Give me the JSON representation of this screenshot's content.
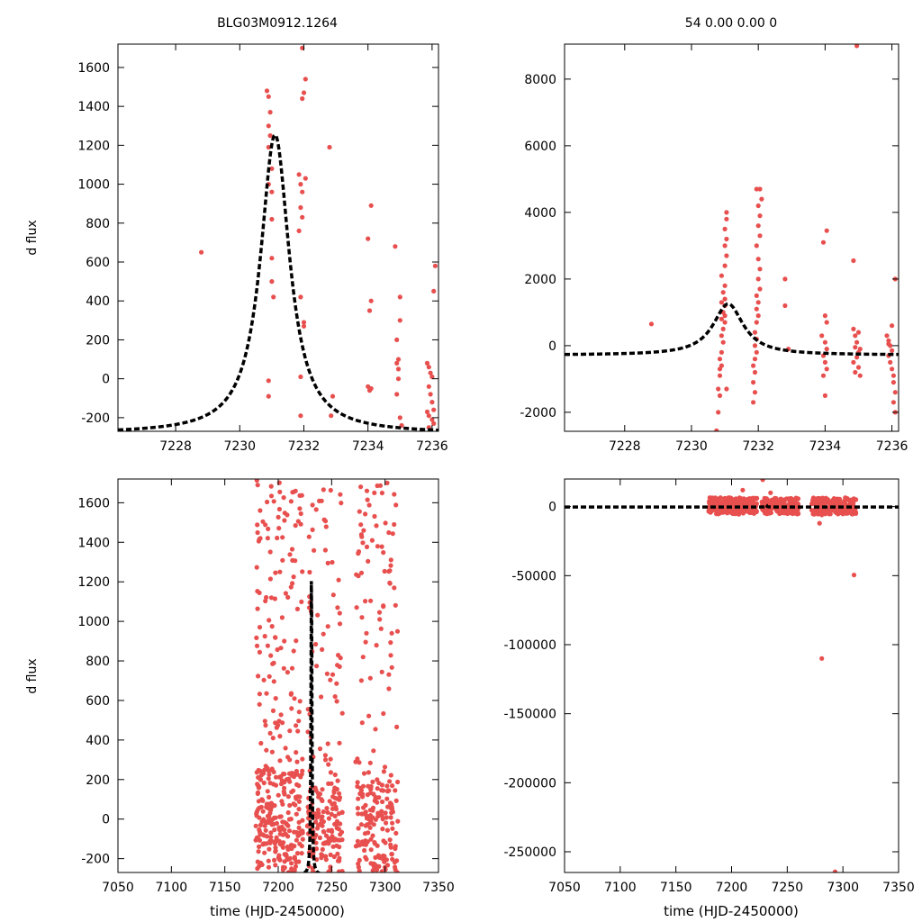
{
  "colors": {
    "points": "#e8504f",
    "model": "#000000",
    "axes": "#000000"
  },
  "chart_data": [
    {
      "id": "top-left",
      "type": "scatter",
      "title": "BLG03M0912.1264",
      "ylabel": "d flux",
      "xlabel": "",
      "xlim": [
        7226.2,
        7236.2
      ],
      "ylim": [
        -270,
        1720
      ],
      "xticks": [
        7228,
        7230,
        7232,
        7234,
        7236
      ],
      "xtick_labels": [
        "7228",
        "7230",
        "7232",
        "7234",
        "7236"
      ],
      "yticks": [
        -200,
        0,
        200,
        400,
        600,
        800,
        1000,
        1200,
        1400,
        1600
      ],
      "ytick_labels": [
        "-200",
        "0",
        "200",
        "400",
        "600",
        "800",
        "1000",
        "1200",
        "1400",
        "1600"
      ],
      "model": {
        "t0": 7231.1,
        "amplitude": 1535,
        "tau": 0.55,
        "baseline": -282
      },
      "points": [
        [
          7228.8,
          650
        ],
        [
          7230.85,
          1480
        ],
        [
          7230.9,
          1450
        ],
        [
          7230.95,
          1370
        ],
        [
          7230.9,
          1300
        ],
        [
          7230.95,
          1250
        ],
        [
          7230.9,
          1190
        ],
        [
          7231.0,
          1080
        ],
        [
          7230.9,
          1000
        ],
        [
          7231.0,
          960
        ],
        [
          7231.0,
          820
        ],
        [
          7231.0,
          620
        ],
        [
          7231.0,
          500
        ],
        [
          7231.05,
          420
        ],
        [
          7230.9,
          -10
        ],
        [
          7230.9,
          -90
        ],
        [
          7231.85,
          1050
        ],
        [
          7231.9,
          1000
        ],
        [
          7231.95,
          960
        ],
        [
          7231.9,
          880
        ],
        [
          7231.95,
          830
        ],
        [
          7231.85,
          760
        ],
        [
          7231.9,
          420
        ],
        [
          7232.0,
          290
        ],
        [
          7232.0,
          270
        ],
        [
          7231.9,
          10
        ],
        [
          7231.9,
          -190
        ],
        [
          7231.95,
          1700
        ],
        [
          7231.95,
          1440
        ],
        [
          7232.0,
          1470
        ],
        [
          7232.05,
          1540
        ],
        [
          7232.05,
          1030
        ],
        [
          7232.8,
          1190
        ],
        [
          7232.9,
          -90
        ],
        [
          7232.85,
          -190
        ],
        [
          7234.0,
          720
        ],
        [
          7234.1,
          890
        ],
        [
          7234.1,
          400
        ],
        [
          7234.05,
          350
        ],
        [
          7234.0,
          -40
        ],
        [
          7234.05,
          -60
        ],
        [
          7234.1,
          -50
        ],
        [
          7234.85,
          680
        ],
        [
          7234.9,
          200
        ],
        [
          7234.95,
          100
        ],
        [
          7234.9,
          80
        ],
        [
          7234.95,
          50
        ],
        [
          7235.0,
          420
        ],
        [
          7235.0,
          300
        ],
        [
          7234.95,
          0
        ],
        [
          7234.9,
          -80
        ],
        [
          7235.0,
          -200
        ],
        [
          7235.05,
          -240
        ],
        [
          7235.85,
          80
        ],
        [
          7235.9,
          60
        ],
        [
          7235.95,
          30
        ],
        [
          7236.0,
          10
        ],
        [
          7235.9,
          -40
        ],
        [
          7235.95,
          -80
        ],
        [
          7236.0,
          -120
        ],
        [
          7235.85,
          -170
        ],
        [
          7235.9,
          -190
        ],
        [
          7236.0,
          -210
        ],
        [
          7236.05,
          -160
        ],
        [
          7236.05,
          -230
        ],
        [
          7235.9,
          -250
        ],
        [
          7236.05,
          450
        ],
        [
          7236.1,
          580
        ]
      ]
    },
    {
      "id": "top-right",
      "type": "scatter",
      "title": "54  0.00  0.00  0",
      "ylabel": "",
      "xlabel": "",
      "xlim": [
        7226.2,
        7236.2
      ],
      "ylim": [
        -2570,
        9050
      ],
      "xticks": [
        7228,
        7230,
        7232,
        7234,
        7236
      ],
      "xtick_labels": [
        "7228",
        "7230",
        "7232",
        "7234",
        "7236"
      ],
      "yticks": [
        -2000,
        0,
        2000,
        4000,
        6000,
        8000
      ],
      "ytick_labels": [
        "-2000",
        "0",
        "2000",
        "4000",
        "6000",
        "8000"
      ],
      "model": {
        "t0": 7231.1,
        "amplitude": 1535,
        "tau": 0.55,
        "baseline": -282
      },
      "points": [
        [
          7228.8,
          650
        ],
        [
          7230.75,
          -2550
        ],
        [
          7230.8,
          -2000
        ],
        [
          7230.85,
          -1500
        ],
        [
          7230.8,
          -1300
        ],
        [
          7230.85,
          -700
        ],
        [
          7230.9,
          -600
        ],
        [
          7230.85,
          -400
        ],
        [
          7230.9,
          -200
        ],
        [
          7230.95,
          100
        ],
        [
          7230.9,
          300
        ],
        [
          7230.95,
          500
        ],
        [
          7231.0,
          700
        ],
        [
          7230.9,
          800
        ],
        [
          7231.0,
          900
        ],
        [
          7230.95,
          1000
        ],
        [
          7231.0,
          1200
        ],
        [
          7230.9,
          1300
        ],
        [
          7231.0,
          1400
        ],
        [
          7230.95,
          1600
        ],
        [
          7231.0,
          1800
        ],
        [
          7230.9,
          2100
        ],
        [
          7231.0,
          2400
        ],
        [
          7231.05,
          2700
        ],
        [
          7231.0,
          3000
        ],
        [
          7231.05,
          3200
        ],
        [
          7231.0,
          3500
        ],
        [
          7231.05,
          3800
        ],
        [
          7231.05,
          4000
        ],
        [
          7230.85,
          -900
        ],
        [
          7231.05,
          -1300
        ],
        [
          7231.85,
          -1700
        ],
        [
          7231.9,
          -1400
        ],
        [
          7231.85,
          -1100
        ],
        [
          7231.9,
          -800
        ],
        [
          7231.85,
          -600
        ],
        [
          7231.9,
          -400
        ],
        [
          7231.95,
          -200
        ],
        [
          7231.9,
          0
        ],
        [
          7231.95,
          200
        ],
        [
          7231.9,
          400
        ],
        [
          7231.95,
          700
        ],
        [
          7232.0,
          900
        ],
        [
          7231.95,
          1100
        ],
        [
          7232.0,
          1300
        ],
        [
          7231.95,
          1500
        ],
        [
          7232.05,
          1700
        ],
        [
          7232.0,
          2000
        ],
        [
          7232.05,
          2300
        ],
        [
          7232.0,
          2600
        ],
        [
          7231.95,
          3000
        ],
        [
          7232.05,
          3300
        ],
        [
          7232.0,
          3600
        ],
        [
          7232.05,
          3900
        ],
        [
          7232.0,
          4200
        ],
        [
          7231.95,
          4700
        ],
        [
          7232.05,
          4700
        ],
        [
          7232.1,
          4400
        ],
        [
          7232.8,
          2000
        ],
        [
          7232.8,
          1200
        ],
        [
          7232.9,
          -100
        ],
        [
          7233.95,
          3100
        ],
        [
          7234.05,
          3450
        ],
        [
          7234.0,
          900
        ],
        [
          7234.05,
          700
        ],
        [
          7233.9,
          300
        ],
        [
          7234.0,
          100
        ],
        [
          7234.05,
          -100
        ],
        [
          7233.95,
          -300
        ],
        [
          7234.0,
          -500
        ],
        [
          7234.05,
          -700
        ],
        [
          7233.95,
          -900
        ],
        [
          7234.0,
          -1500
        ],
        [
          7234.85,
          2550
        ],
        [
          7234.85,
          500
        ],
        [
          7234.9,
          300
        ],
        [
          7234.95,
          100
        ],
        [
          7234.9,
          -50
        ],
        [
          7235.0,
          -200
        ],
        [
          7234.95,
          -350
        ],
        [
          7234.85,
          -500
        ],
        [
          7235.0,
          -650
        ],
        [
          7234.9,
          -800
        ],
        [
          7235.05,
          -900
        ],
        [
          7235.0,
          400
        ],
        [
          7235.05,
          -100
        ],
        [
          7234.95,
          9000
        ],
        [
          7235.85,
          300
        ],
        [
          7235.9,
          150
        ],
        [
          7235.95,
          0
        ],
        [
          7236.0,
          -150
        ],
        [
          7235.9,
          -300
        ],
        [
          7235.95,
          -500
        ],
        [
          7236.0,
          -700
        ],
        [
          7236.05,
          -900
        ],
        [
          7236.05,
          -1100
        ],
        [
          7236.1,
          -1400
        ],
        [
          7236.05,
          -1700
        ],
        [
          7236.1,
          -2000
        ],
        [
          7236.1,
          2000
        ],
        [
          7235.9,
          50
        ],
        [
          7236.0,
          600
        ]
      ]
    },
    {
      "id": "bottom-left",
      "type": "scatter",
      "title": "",
      "ylabel": "d flux",
      "xlabel": "time (HJD-2450000)",
      "xlim": [
        7050,
        7350
      ],
      "ylim": [
        -270,
        1720
      ],
      "xticks": [
        7050,
        7100,
        7150,
        7200,
        7250,
        7300,
        7350
      ],
      "xtick_labels": [
        "7050",
        "7100",
        "7150",
        "7200",
        "7250",
        "7300",
        "7350"
      ],
      "yticks": [
        -200,
        0,
        200,
        400,
        600,
        800,
        1000,
        1200,
        1400,
        1600
      ],
      "ytick_labels": [
        "-200",
        "0",
        "200",
        "400",
        "600",
        "800",
        "1000",
        "1200",
        "1400",
        "1600"
      ],
      "model": {
        "t0": 7231.1,
        "amplitude": 1535,
        "tau": 0.55,
        "baseline": -282
      },
      "clusters": [
        {
          "xmin": 7179,
          "xmax": 7223,
          "ymin": -270,
          "ymax": 1720,
          "count": 360,
          "dense_below": 250,
          "seed": 11
        },
        {
          "xmin": 7227,
          "xmax": 7260,
          "ymin": -270,
          "ymax": 1720,
          "count": 200,
          "dense_below": 180,
          "seed": 23
        },
        {
          "xmin": 7272,
          "xmax": 7312,
          "ymin": -270,
          "ymax": 1720,
          "count": 230,
          "dense_below": 200,
          "seed": 37
        }
      ],
      "points": [
        [
          7288,
          1410
        ],
        [
          7293,
          1380
        ],
        [
          7290,
          1650
        ],
        [
          7283,
          1660
        ],
        [
          7302,
          1700
        ],
        [
          7280,
          1460
        ],
        [
          7275,
          1230
        ],
        [
          7295,
          1010
        ]
      ]
    },
    {
      "id": "bottom-right",
      "type": "scatter",
      "title": "",
      "ylabel": "",
      "xlabel": "time (HJD-2450000)",
      "xlim": [
        7050,
        7350
      ],
      "ylim": [
        -265000,
        20000
      ],
      "xticks": [
        7050,
        7100,
        7150,
        7200,
        7250,
        7300,
        7350
      ],
      "xtick_labels": [
        "7050",
        "7100",
        "7150",
        "7200",
        "7250",
        "7300",
        "7350"
      ],
      "yticks": [
        -250000,
        -200000,
        -150000,
        -100000,
        -50000,
        0
      ],
      "ytick_labels": [
        "-250000",
        "-200000",
        "-150000",
        "-100000",
        "-50000",
        "0"
      ],
      "model": {
        "t0": 7231.1,
        "amplitude": 1535,
        "tau": 0.55,
        "baseline": -282
      },
      "clusters": [
        {
          "xmin": 7179,
          "xmax": 7223,
          "ymin": -5500,
          "ymax": 6500,
          "count": 260,
          "seed": 41
        },
        {
          "xmin": 7227,
          "xmax": 7260,
          "ymin": -5500,
          "ymax": 6500,
          "count": 160,
          "seed": 53
        },
        {
          "xmin": 7272,
          "xmax": 7312,
          "ymin": -5500,
          "ymax": 6500,
          "count": 200,
          "seed": 67
        }
      ],
      "points": [
        [
          7228,
          19500
        ],
        [
          7235,
          10000
        ],
        [
          7210,
          12000
        ],
        [
          7310,
          -49500
        ],
        [
          7281,
          -110000
        ],
        [
          7293,
          -264500
        ],
        [
          7281,
          -6000
        ],
        [
          7279,
          -12000
        ]
      ]
    }
  ]
}
